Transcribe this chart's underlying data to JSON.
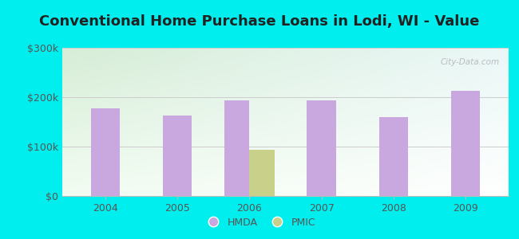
{
  "title": "Conventional Home Purchase Loans in Lodi, WI - Value",
  "years": [
    2004,
    2005,
    2006,
    2007,
    2008,
    2009
  ],
  "hmda_values": [
    178000,
    163000,
    193000,
    193000,
    160000,
    213000
  ],
  "pmic_values": [
    0,
    0,
    93000,
    0,
    0,
    0
  ],
  "hmda_color": "#c9a8e0",
  "pmic_color": "#c8d08a",
  "background_outer": "#00EEEE",
  "background_inner_top_left": "#d6edd6",
  "background_inner_top_right": "#e8f5f5",
  "background_inner_bottom": "#ffffff",
  "ylim": [
    0,
    300000
  ],
  "yticks": [
    0,
    100000,
    200000,
    300000
  ],
  "ytick_labels": [
    "$0",
    "$100k",
    "$200k",
    "$300k"
  ],
  "bar_width": 0.35,
  "watermark": "City-Data.com",
  "title_fontsize": 13,
  "tick_fontsize": 9,
  "legend_fontsize": 9,
  "title_color": "#222222",
  "tick_color": "#555555",
  "grid_color": "#cccccc",
  "spine_color": "#bbbbbb"
}
